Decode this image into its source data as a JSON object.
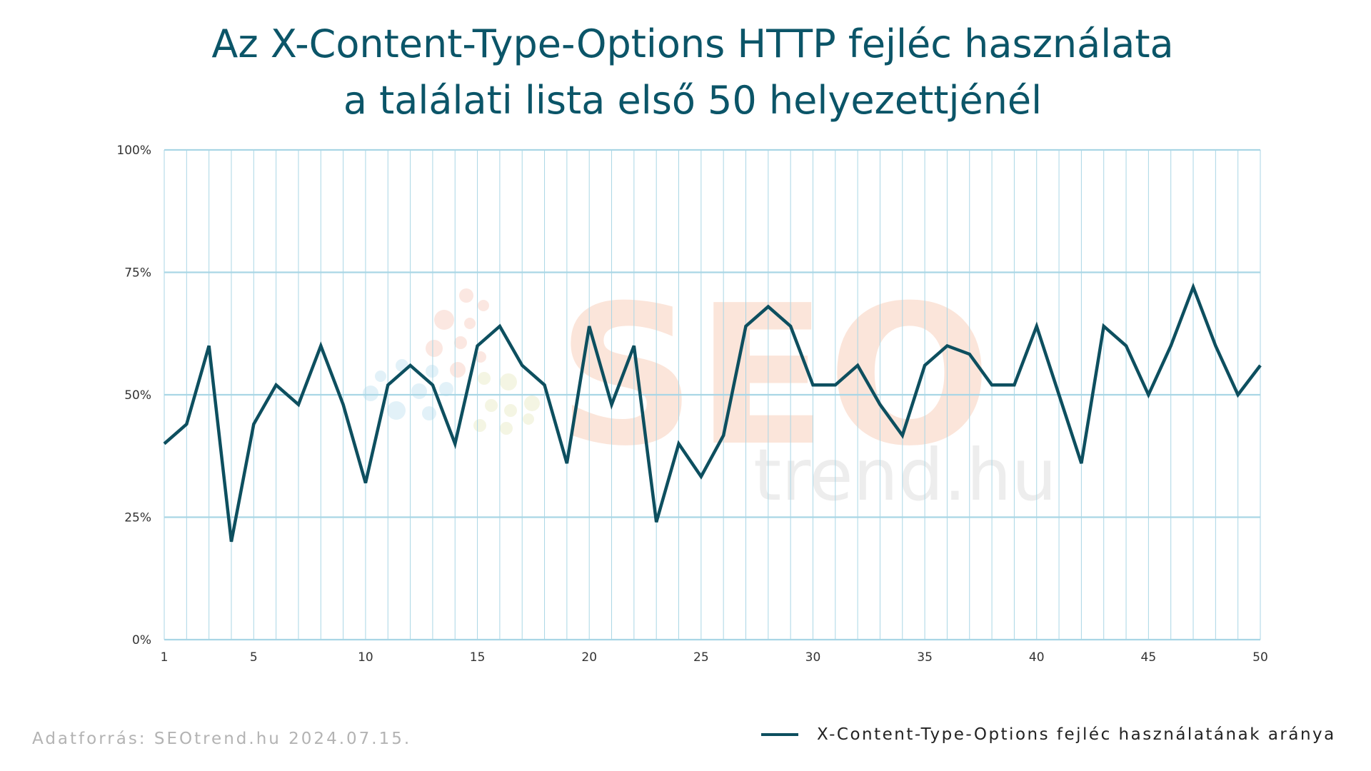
{
  "title": {
    "line1": "Az X-Content-Type-Options HTTP fejléc használata",
    "line2": "a találati lista első 50 helyezettjénél"
  },
  "source": "Adatforrás: SEOtrend.hu 2024.07.15.",
  "colors": {
    "title": "#0b5568",
    "line": "#0d4f5f",
    "grid": "#a9d6e5",
    "axis_text": "#333333"
  },
  "watermark": {
    "big": "SEO",
    "small": "trend.hu"
  },
  "chart_data": {
    "type": "line",
    "x": [
      1,
      2,
      3,
      4,
      5,
      6,
      7,
      8,
      9,
      10,
      11,
      12,
      13,
      14,
      15,
      16,
      17,
      18,
      19,
      20,
      21,
      22,
      23,
      24,
      25,
      26,
      27,
      28,
      29,
      30,
      31,
      32,
      33,
      34,
      35,
      36,
      37,
      38,
      39,
      40,
      41,
      42,
      43,
      44,
      45,
      46,
      47,
      48,
      49,
      50
    ],
    "x_ticks": [
      1,
      5,
      10,
      15,
      20,
      25,
      30,
      35,
      40,
      45,
      50
    ],
    "xlim": [
      1,
      50
    ],
    "y_ticks": [
      0,
      25,
      50,
      75,
      100
    ],
    "y_tick_labels": [
      "0%",
      "25%",
      "50%",
      "75%",
      "100%"
    ],
    "ylim": [
      0,
      100
    ],
    "grid": true,
    "legend_position": "bottom-right",
    "series": [
      {
        "name": "X-Content-Type-Options fejléc használatának aránya",
        "values": [
          40,
          44,
          60,
          20,
          44,
          52,
          48,
          60,
          48,
          32,
          52,
          56,
          52,
          40,
          60,
          64,
          56,
          52,
          36,
          64,
          48,
          60,
          24,
          40,
          33.3,
          41.7,
          64,
          68,
          64,
          52,
          52,
          56,
          48,
          41.7,
          56,
          60,
          58.3,
          52,
          52,
          64,
          50,
          36,
          64,
          60,
          50,
          60,
          72,
          60,
          50,
          56
        ]
      }
    ]
  }
}
